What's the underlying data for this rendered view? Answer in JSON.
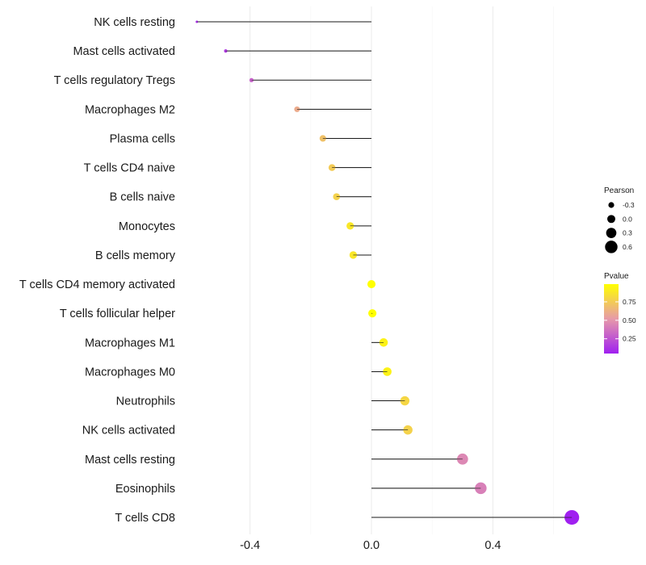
{
  "chart_data": {
    "type": "lollipop",
    "title": "",
    "xlabel": "",
    "ylabel": "",
    "xlim": [
      -0.6,
      0.67
    ],
    "x_ticks": [
      {
        "value": -0.4,
        "label": "-0.4"
      },
      {
        "value": 0.0,
        "label": "0.0"
      },
      {
        "value": 0.4,
        "label": "0.4"
      }
    ],
    "grid": true,
    "categories": [
      "NK cells resting",
      "Mast cells activated",
      "T cells regulatory  Tregs",
      "Macrophages M2",
      "Plasma cells",
      "T cells CD4 naive",
      "B cells naive",
      "Monocytes",
      "B cells memory",
      "T cells CD4 memory activated",
      "T cells follicular helper",
      "Macrophages M1",
      "Macrophages M0",
      "Neutrophils",
      "NK cells activated",
      "Mast cells resting",
      "Eosinophils",
      "T cells CD8"
    ],
    "pearson": [
      -0.575,
      -0.48,
      -0.395,
      -0.245,
      -0.16,
      -0.13,
      -0.115,
      -0.07,
      -0.06,
      0.0,
      0.003,
      0.04,
      0.052,
      0.11,
      0.12,
      0.3,
      0.36,
      0.66
    ],
    "pvalue": [
      0.1,
      0.15,
      0.3,
      0.6,
      0.7,
      0.75,
      0.78,
      0.88,
      0.88,
      0.99,
      0.99,
      0.93,
      0.93,
      0.8,
      0.78,
      0.45,
      0.42,
      0.05
    ],
    "size_legend": {
      "title": "Pearson",
      "breaks": [
        {
          "value": -0.3,
          "label": "-0.3"
        },
        {
          "value": 0.0,
          "label": "0.0"
        },
        {
          "value": 0.3,
          "label": "0.3"
        },
        {
          "value": 0.6,
          "label": "0.6"
        }
      ]
    },
    "color_legend": {
      "title": "Pvalue",
      "low_color": "#a020f0",
      "mid_color": "#e79aa9",
      "high_color": "#ffff00",
      "range": [
        0.05,
        0.99
      ],
      "breaks": [
        {
          "value": 0.25,
          "label": "0.25"
        },
        {
          "value": 0.5,
          "label": "0.50"
        },
        {
          "value": 0.75,
          "label": "0.75"
        }
      ]
    }
  }
}
